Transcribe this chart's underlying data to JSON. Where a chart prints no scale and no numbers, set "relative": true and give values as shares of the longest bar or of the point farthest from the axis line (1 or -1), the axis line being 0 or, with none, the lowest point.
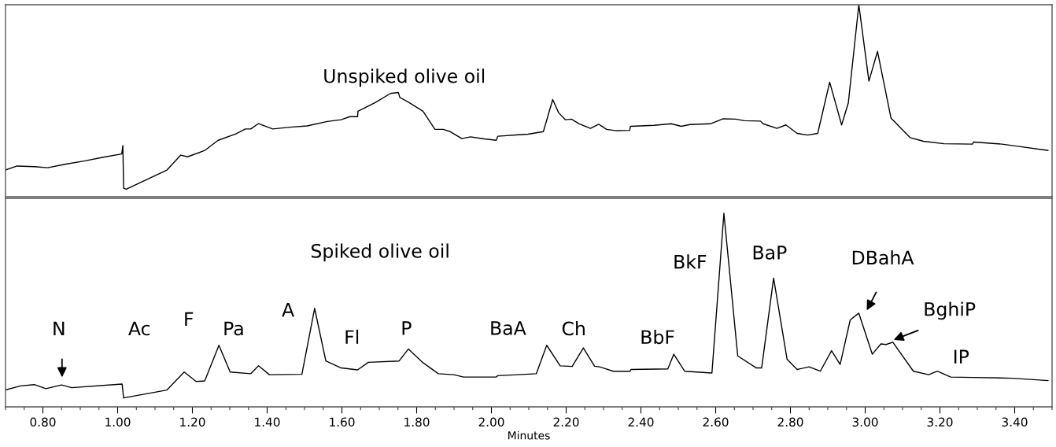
{
  "chart_data": [
    {
      "type": "line",
      "title": "Unspiked olive oil",
      "relative": true,
      "xlim": [
        0.7,
        3.5
      ],
      "tick_labels": false,
      "series": [
        {
          "color": "#000000",
          "x": [
            0.7,
            0.731,
            0.777,
            0.813,
            0.859,
            0.913,
            0.959,
            1.011,
            1.014,
            1.016,
            1.023,
            1.068,
            1.132,
            1.169,
            1.187,
            1.233,
            1.269,
            1.315,
            1.342,
            1.356,
            1.377,
            1.415,
            1.461,
            1.507,
            1.561,
            1.598,
            1.621,
            1.642,
            1.643,
            1.689,
            1.73,
            1.751,
            1.755,
            1.78,
            1.817,
            1.849,
            1.871,
            1.89,
            1.921,
            1.944,
            1.981,
            2.013,
            2.017,
            2.072,
            2.098,
            2.139,
            2.164,
            2.18,
            2.198,
            2.214,
            2.235,
            2.265,
            2.287,
            2.308,
            2.335,
            2.37,
            2.372,
            2.435,
            2.481,
            2.508,
            2.531,
            2.586,
            2.62,
            2.654,
            2.677,
            2.72,
            2.727,
            2.764,
            2.788,
            2.818,
            2.846,
            2.873,
            2.905,
            2.937,
            2.955,
            2.983,
            3.01,
            3.033,
            3.069,
            3.12,
            3.156,
            3.211,
            3.287,
            3.29,
            3.366,
            3.412,
            3.489
          ],
          "values": [
            0.139,
            0.16,
            0.157,
            0.151,
            0.169,
            0.187,
            0.205,
            0.223,
            0.267,
            0.045,
            0.039,
            0.08,
            0.139,
            0.217,
            0.208,
            0.241,
            0.294,
            0.326,
            0.353,
            0.353,
            0.381,
            0.353,
            0.362,
            0.369,
            0.392,
            0.401,
            0.417,
            0.417,
            0.445,
            0.49,
            0.538,
            0.543,
            0.517,
            0.49,
            0.445,
            0.351,
            0.351,
            0.339,
            0.303,
            0.312,
            0.301,
            0.294,
            0.315,
            0.323,
            0.326,
            0.339,
            0.506,
            0.437,
            0.401,
            0.404,
            0.38,
            0.356,
            0.378,
            0.351,
            0.344,
            0.346,
            0.367,
            0.372,
            0.38,
            0.367,
            0.376,
            0.38,
            0.406,
            0.404,
            0.396,
            0.394,
            0.38,
            0.356,
            0.374,
            0.33,
            0.321,
            0.33,
            0.597,
            0.374,
            0.49,
            1.0,
            0.602,
            0.757,
            0.41,
            0.308,
            0.289,
            0.276,
            0.274,
            0.285,
            0.274,
            0.262,
            0.241
          ]
        }
      ]
    },
    {
      "type": "line",
      "title": "Spiked olive oil",
      "xlabel": "Minutes",
      "relative": true,
      "xlim": [
        0.7,
        3.5
      ],
      "tick_labels": "x",
      "xticks": [
        {
          "value": 0.8,
          "label": "0.80"
        },
        {
          "value": 1.0,
          "label": "1.00"
        },
        {
          "value": 1.2,
          "label": "1.20"
        },
        {
          "value": 1.4,
          "label": "1.40"
        },
        {
          "value": 1.6,
          "label": "1.60"
        },
        {
          "value": 1.8,
          "label": "1.80"
        },
        {
          "value": 2.0,
          "label": "2.00"
        },
        {
          "value": 2.2,
          "label": "2.20"
        },
        {
          "value": 2.4,
          "label": "2.40"
        },
        {
          "value": 2.6,
          "label": "2.60"
        },
        {
          "value": 2.8,
          "label": "2.80"
        },
        {
          "value": 3.0,
          "label": "3.00"
        },
        {
          "value": 3.2,
          "label": "3.20"
        },
        {
          "value": 3.4,
          "label": "3.40"
        }
      ],
      "annotations": [
        "N",
        "Ac",
        "F",
        "Pa",
        "A",
        "Fl",
        "P",
        "BaA",
        "Ch",
        "BbF",
        "BkF",
        "BaP",
        "DBahA",
        "BghiP",
        "IP"
      ],
      "series": [
        {
          "color": "#000000",
          "x": [
            0.7,
            0.74,
            0.777,
            0.808,
            0.85,
            0.877,
            1.012,
            1.016,
            1.132,
            1.178,
            1.21,
            1.233,
            1.271,
            1.301,
            1.356,
            1.377,
            1.406,
            1.493,
            1.527,
            1.557,
            1.598,
            1.642,
            1.671,
            1.753,
            1.778,
            1.817,
            1.858,
            1.899,
            1.926,
            2.013,
            2.017,
            2.07,
            2.12,
            2.148,
            2.184,
            2.216,
            2.246,
            2.276,
            2.289,
            2.326,
            2.371,
            2.373,
            2.472,
            2.488,
            2.517,
            2.59,
            2.622,
            2.659,
            2.709,
            2.723,
            2.755,
            2.791,
            2.818,
            2.85,
            2.88,
            2.91,
            2.933,
            2.96,
            2.983,
            3.019,
            3.042,
            3.056,
            3.074,
            3.129,
            3.17,
            3.193,
            3.229,
            3.288,
            3.393,
            3.489
          ],
          "values": [
            0.087,
            0.108,
            0.115,
            0.094,
            0.113,
            0.099,
            0.118,
            0.046,
            0.087,
            0.18,
            0.131,
            0.134,
            0.318,
            0.18,
            0.171,
            0.212,
            0.166,
            0.168,
            0.509,
            0.237,
            0.201,
            0.191,
            0.23,
            0.237,
            0.299,
            0.228,
            0.171,
            0.166,
            0.154,
            0.154,
            0.161,
            0.166,
            0.171,
            0.318,
            0.212,
            0.209,
            0.304,
            0.21,
            0.207,
            0.184,
            0.184,
            0.193,
            0.196,
            0.272,
            0.184,
            0.175,
            1.0,
            0.263,
            0.201,
            0.201,
            0.665,
            0.246,
            0.193,
            0.207,
            0.184,
            0.29,
            0.219,
            0.449,
            0.484,
            0.272,
            0.325,
            0.322,
            0.334,
            0.184,
            0.166,
            0.184,
            0.154,
            0.152,
            0.148,
            0.136
          ]
        }
      ]
    }
  ]
}
